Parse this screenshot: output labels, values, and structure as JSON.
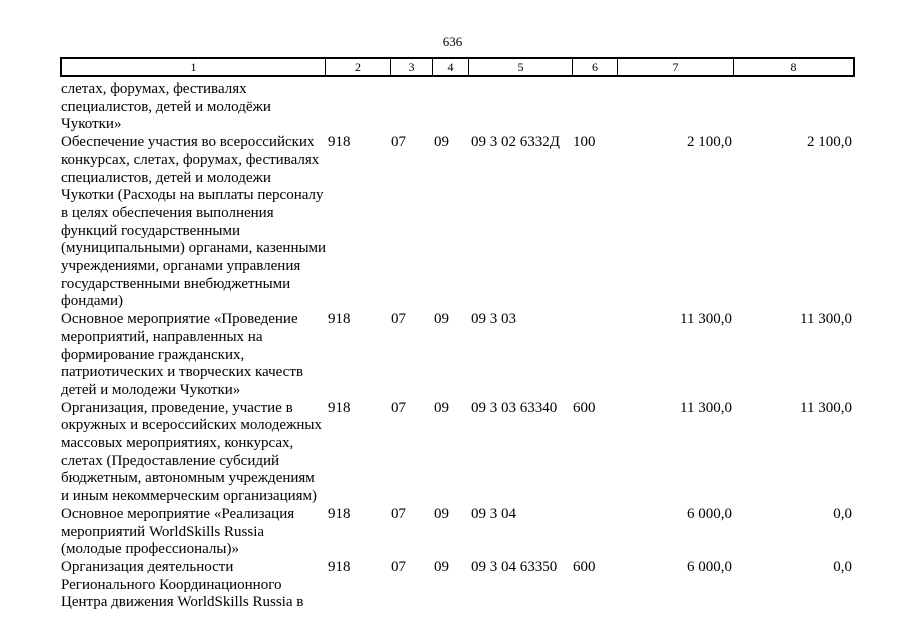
{
  "page": {
    "number": "636"
  },
  "table": {
    "headers": [
      "1",
      "2",
      "3",
      "4",
      "5",
      "6",
      "7",
      "8"
    ],
    "rows": [
      {
        "name": "слетах, форумах, фестивалях\nспециалистов, детей и молодёжи\nЧукотки»",
        "grbs": "",
        "section": "",
        "subsection": "",
        "target": "",
        "type": "",
        "amount1": "",
        "amount2": ""
      },
      {
        "name": "Обеспечение участия во всероссийских\nконкурсах, слетах, форумах, фестивалях\nспециалистов, детей и молодежи\nЧукотки (Расходы на выплаты персоналу\nв целях обеспечения выполнения\nфункций государственными\n(муниципальными) органами, казенными\nучреждениями, органами управления\nгосударственными внебюджетными\nфондами)",
        "grbs": "918",
        "section": "07",
        "subsection": "09",
        "target": "09 3 02 6332Д",
        "type": "100",
        "amount1": "2 100,0",
        "amount2": "2 100,0"
      },
      {
        "name": "Основное мероприятие «Проведение\nмероприятий, направленных на\nформирование гражданских,\nпатриотических и творческих качеств\nдетей и молодежи Чукотки»",
        "grbs": "918",
        "section": "07",
        "subsection": "09",
        "target": "09 3 03",
        "type": "",
        "amount1": "11 300,0",
        "amount2": "11 300,0"
      },
      {
        "name": "Организация, проведение, участие в\nокружных и всероссийских молодежных\nмассовых мероприятиях, конкурсах,\nслетах (Предоставление субсидий\nбюджетным, автономным учреждениям\nи иным некоммерческим организациям)",
        "grbs": "918",
        "section": "07",
        "subsection": "09",
        "target": "09 3 03 63340",
        "type": "600",
        "amount1": "11 300,0",
        "amount2": "11 300,0"
      },
      {
        "name": "Основное мероприятие «Реализация\nмероприятий WorldSkills Russia\n(молодые профессионалы)»",
        "grbs": "918",
        "section": "07",
        "subsection": "09",
        "target": "09 3 04",
        "type": "",
        "amount1": "6 000,0",
        "amount2": "0,0"
      },
      {
        "name": "Организация деятельности\nРегионального Координационного\nЦентра движения WorldSkills Russia в",
        "grbs": "918",
        "section": "07",
        "subsection": "09",
        "target": "09 3 04 63350",
        "type": "600",
        "amount1": "6 000,0",
        "amount2": "0,0"
      }
    ]
  }
}
